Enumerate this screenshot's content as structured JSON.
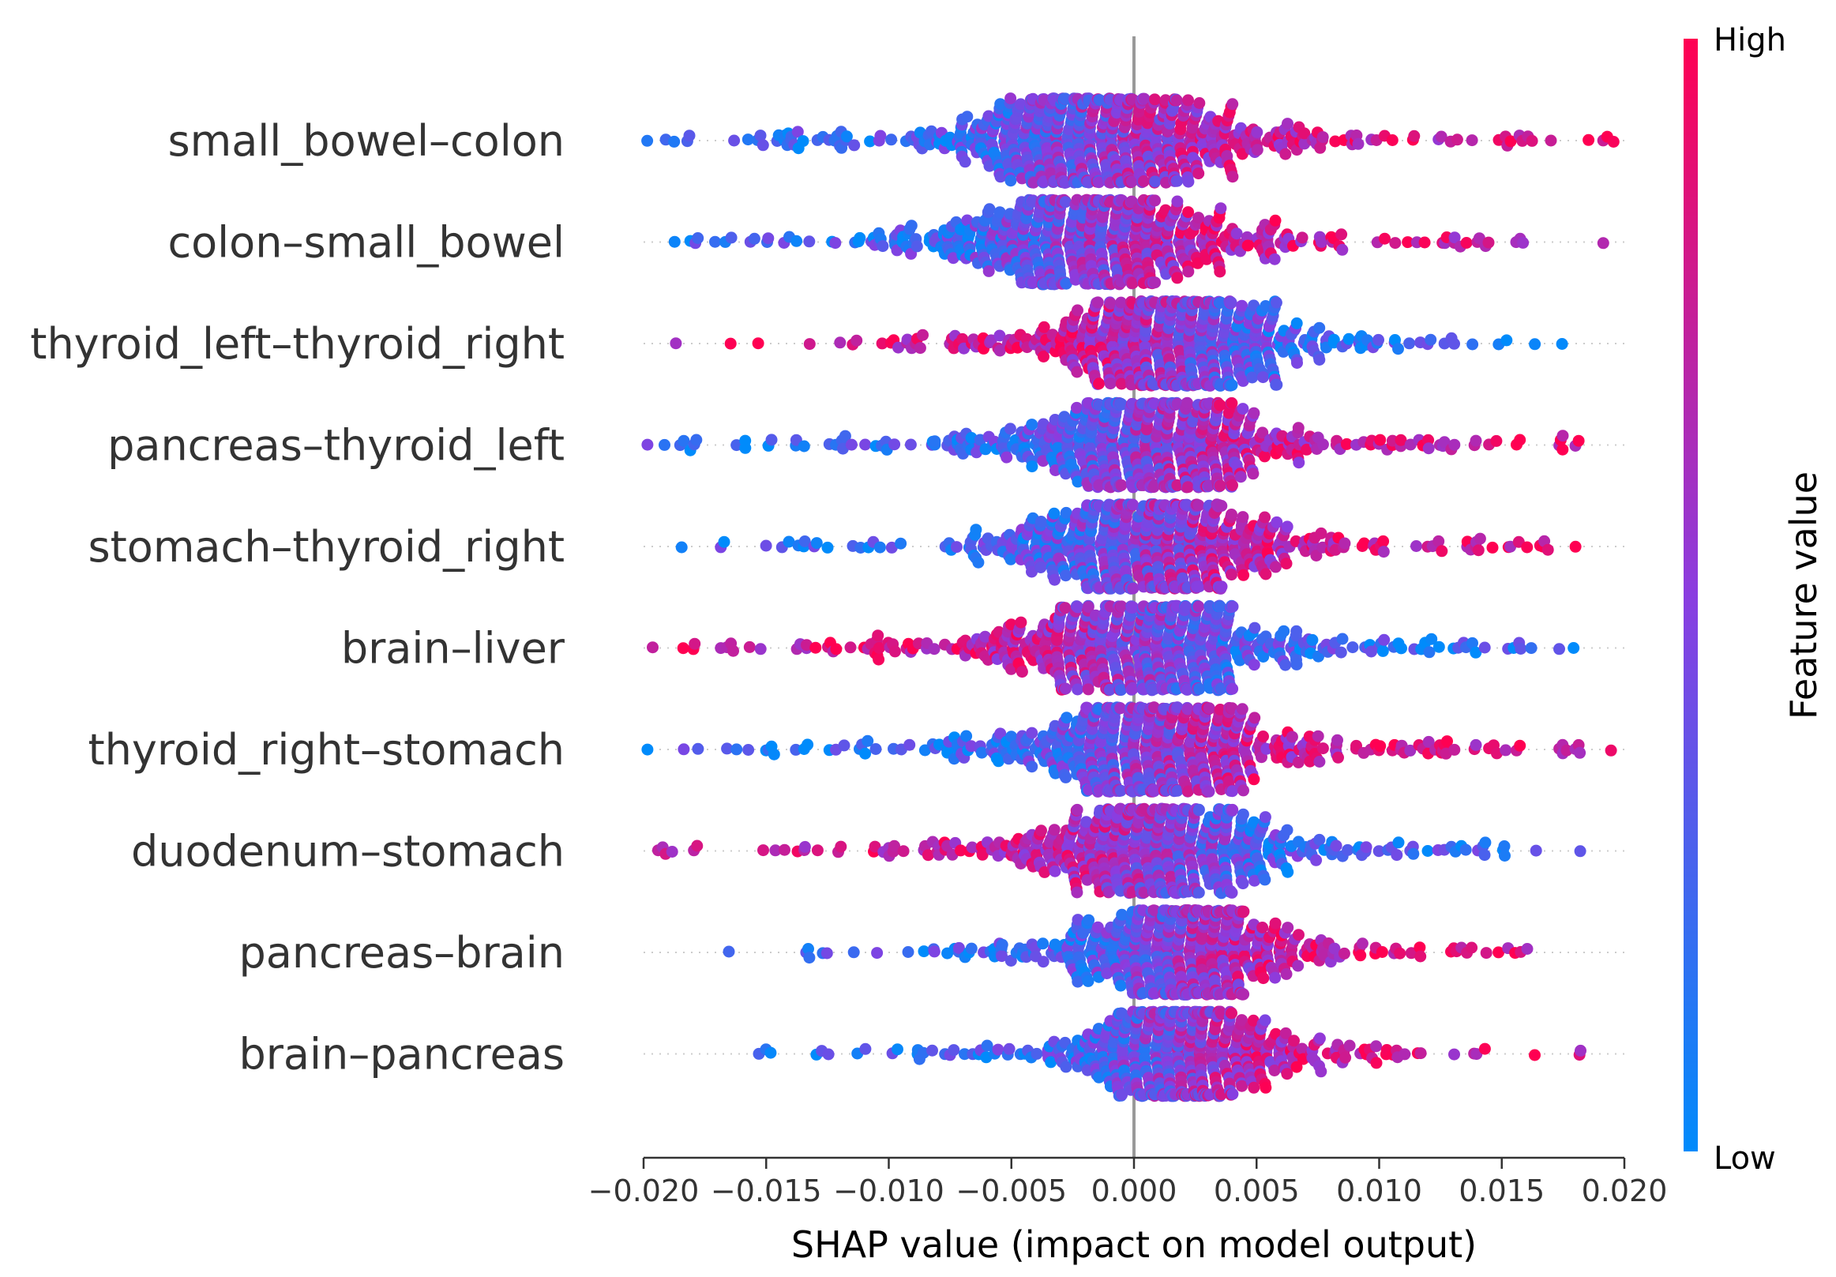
{
  "chart_data": {
    "type": "scatter",
    "subtype": "beeswarm",
    "xlabel": "SHAP value (impact on model output)",
    "xlim": [
      -0.02,
      0.02
    ],
    "xticks": [
      -0.02,
      -0.015,
      -0.01,
      -0.005,
      0.0,
      0.005,
      0.01,
      0.015,
      0.02
    ],
    "xtick_labels": [
      "−0.020",
      "−0.015",
      "−0.010",
      "−0.005",
      "0.000",
      "0.005",
      "0.010",
      "0.015",
      "0.020"
    ],
    "zero_line": 0.0,
    "features": [
      {
        "name": "small_bowel–colon",
        "center": -0.0015,
        "spread": 0.0072,
        "direction": 1,
        "left": -0.02,
        "right": 0.02,
        "density": 1.25
      },
      {
        "name": "colon–small_bowel",
        "center": -0.002,
        "spread": 0.0065,
        "direction": 1,
        "left": -0.0198,
        "right": 0.02,
        "density": 1.2
      },
      {
        "name": "thyroid_left–thyroid_right",
        "center": 0.0018,
        "spread": 0.0052,
        "direction": -1,
        "left": -0.02,
        "right": 0.0175,
        "density": 1.15
      },
      {
        "name": "pancreas–thyroid_left",
        "center": 0.0005,
        "spread": 0.0062,
        "direction": 1,
        "left": -0.02,
        "right": 0.0188,
        "density": 1.15
      },
      {
        "name": "stomach–thyroid_right",
        "center": 0.0005,
        "spread": 0.006,
        "direction": 1,
        "left": -0.0192,
        "right": 0.02,
        "density": 1.15
      },
      {
        "name": "brain–liver",
        "center": 0.0,
        "spread": 0.0062,
        "direction": -1,
        "left": -0.0198,
        "right": 0.0185,
        "density": 1.15
      },
      {
        "name": "thyroid_right–stomach",
        "center": 0.0005,
        "spread": 0.0062,
        "direction": 1,
        "left": -0.02,
        "right": 0.02,
        "density": 1.15
      },
      {
        "name": "duodenum–stomach",
        "center": 0.001,
        "spread": 0.006,
        "direction": -1,
        "left": -0.02,
        "right": 0.0196,
        "density": 1.1
      },
      {
        "name": "pancreas–brain",
        "center": 0.0018,
        "spread": 0.005,
        "direction": 1,
        "left": -0.0188,
        "right": 0.0162,
        "density": 1.05
      },
      {
        "name": "brain–pancreas",
        "center": 0.0018,
        "spread": 0.005,
        "direction": 1,
        "left": -0.0185,
        "right": 0.02,
        "density": 1.05
      }
    ],
    "colorbar": {
      "title": "Feature value",
      "high_label": "High",
      "low_label": "Low",
      "low_color": "#008bfb",
      "mid_color": "#8a3de0",
      "high_color": "#ff0052"
    },
    "colors": {
      "zero_line": "#999999",
      "row_dots": "#cccccc",
      "axis": "#333333"
    }
  }
}
